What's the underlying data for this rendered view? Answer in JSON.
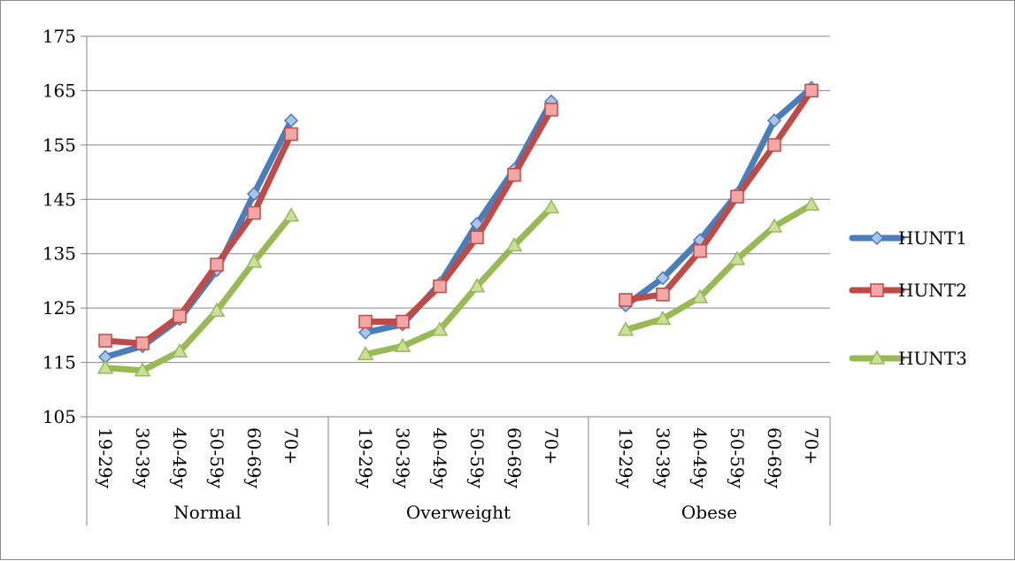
{
  "chart_data": {
    "type": "line",
    "title": "",
    "xlabel": "",
    "ylabel": "",
    "ylim": [
      105,
      175
    ],
    "yticks": [
      105,
      115,
      125,
      135,
      145,
      155,
      165,
      175
    ],
    "grid": "horizontal",
    "legend": "right",
    "groups": [
      {
        "label": "Normal",
        "categories": [
          "19-29y",
          "30-39y",
          "40-49y",
          "50-59y",
          "60-69y",
          "70+"
        ]
      },
      {
        "label": "Overweight",
        "categories": [
          "19-29y",
          "30-39y",
          "40-49y",
          "50-59y",
          "60-69y",
          "70+"
        ]
      },
      {
        "label": "Obese",
        "categories": [
          "19-29y",
          "30-39y",
          "40-49y",
          "50-59y",
          "60-69y",
          "70+"
        ]
      }
    ],
    "series": [
      {
        "name": "HUNT1",
        "color": "#4a7ebb",
        "marker": "diamond",
        "values": [
          [
            116,
            118,
            123,
            132,
            146,
            159.5
          ],
          [
            120.5,
            122,
            129.5,
            140.5,
            150.5,
            163
          ],
          [
            125.5,
            130.5,
            137.5,
            146,
            159.5,
            165.5
          ]
        ]
      },
      {
        "name": "HUNT2",
        "color": "#be4b48",
        "marker": "square",
        "values": [
          [
            119,
            118.5,
            123.5,
            133,
            142.5,
            157
          ],
          [
            122.5,
            122.5,
            129,
            138,
            149.5,
            161.5
          ],
          [
            126.5,
            127.5,
            135.5,
            145.5,
            155,
            165
          ]
        ]
      },
      {
        "name": "HUNT3",
        "color": "#98b954",
        "marker": "triangle",
        "values": [
          [
            114,
            113.5,
            117,
            124.5,
            133.5,
            142
          ],
          [
            116.5,
            118,
            121,
            129,
            136.5,
            143.5
          ],
          [
            121,
            123,
            127,
            134,
            140,
            144
          ]
        ]
      }
    ]
  }
}
